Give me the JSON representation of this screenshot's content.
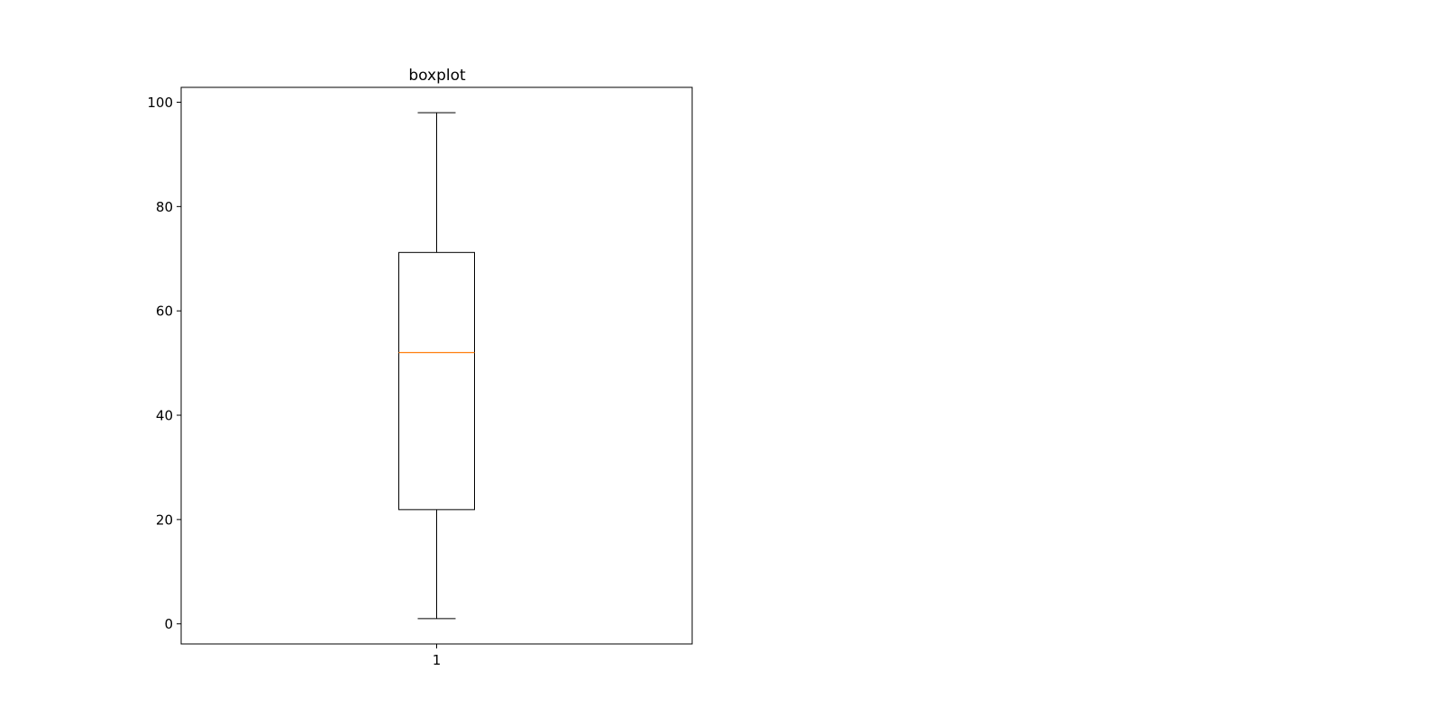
{
  "chart_data": {
    "type": "boxplot",
    "title": "boxplot",
    "xlabel": "",
    "ylabel": "",
    "categories": [
      "1"
    ],
    "boxes": [
      {
        "category": "1",
        "whisker_low": 1,
        "q1": 21.9,
        "median": 52,
        "q3": 71.2,
        "whisker_high": 98
      }
    ],
    "ylim": [
      -3.85,
      102.85
    ],
    "yticks": [
      0,
      20,
      40,
      60,
      80,
      100
    ],
    "grid": false,
    "colors": {
      "box": "#000000",
      "median": "#ff7f0e",
      "axes": "#000000"
    }
  }
}
